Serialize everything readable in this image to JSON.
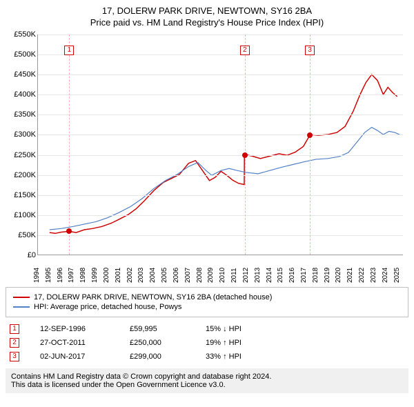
{
  "title": "17, DOLERW PARK DRIVE, NEWTOWN, SY16 2BA",
  "subtitle": "Price paid vs. HM Land Registry's House Price Index (HPI)",
  "chart": {
    "type": "line",
    "xlim": [
      1994,
      2025.5
    ],
    "ylim": [
      0,
      550
    ],
    "ytick_step": 50,
    "y_prefix": "£",
    "y_suffix": "K",
    "x_labels": [
      1994,
      1995,
      1996,
      1997,
      1998,
      1999,
      2000,
      2001,
      2002,
      2003,
      2004,
      2005,
      2006,
      2007,
      2008,
      2009,
      2010,
      2011,
      2012,
      2013,
      2014,
      2015,
      2016,
      2017,
      2018,
      2019,
      2020,
      2021,
      2022,
      2023,
      2024,
      2025
    ],
    "grid_color": "#e6e6e6",
    "axis_color": "#999999",
    "background_color": "#ffffff",
    "series": [
      {
        "name": "price",
        "color": "#d00000",
        "width": 1.5,
        "points": [
          [
            1995.0,
            55
          ],
          [
            1995.5,
            53
          ],
          [
            1996.0,
            56
          ],
          [
            1996.7,
            58
          ],
          [
            1997.3,
            55
          ],
          [
            1998.0,
            62
          ],
          [
            1998.7,
            65
          ],
          [
            1999.5,
            70
          ],
          [
            2000.3,
            78
          ],
          [
            2001.0,
            88
          ],
          [
            2001.8,
            100
          ],
          [
            2002.5,
            115
          ],
          [
            2003.2,
            135
          ],
          [
            2004.0,
            160
          ],
          [
            2004.8,
            180
          ],
          [
            2005.5,
            190
          ],
          [
            2006.2,
            200
          ],
          [
            2007.0,
            228
          ],
          [
            2007.6,
            235
          ],
          [
            2008.2,
            210
          ],
          [
            2008.8,
            185
          ],
          [
            2009.3,
            193
          ],
          [
            2009.8,
            208
          ],
          [
            2010.3,
            198
          ],
          [
            2010.8,
            186
          ],
          [
            2011.3,
            178
          ],
          [
            2011.8,
            175
          ],
          [
            2011.82,
            250
          ],
          [
            2012.5,
            246
          ],
          [
            2013.2,
            240
          ],
          [
            2014.0,
            246
          ],
          [
            2014.8,
            252
          ],
          [
            2015.5,
            248
          ],
          [
            2016.2,
            256
          ],
          [
            2016.9,
            270
          ],
          [
            2017.4,
            295
          ],
          [
            2017.42,
            300
          ],
          [
            2018.2,
            298
          ],
          [
            2019.0,
            300
          ],
          [
            2019.8,
            305
          ],
          [
            2020.5,
            320
          ],
          [
            2021.2,
            358
          ],
          [
            2021.8,
            400
          ],
          [
            2022.3,
            430
          ],
          [
            2022.8,
            450
          ],
          [
            2023.3,
            435
          ],
          [
            2023.8,
            400
          ],
          [
            2024.2,
            418
          ],
          [
            2024.6,
            405
          ],
          [
            2025.0,
            395
          ]
        ]
      },
      {
        "name": "hpi",
        "color": "#5080c8",
        "width": 1.2,
        "points": [
          [
            1995.0,
            62
          ],
          [
            1996.0,
            65
          ],
          [
            1997.0,
            70
          ],
          [
            1998.0,
            76
          ],
          [
            1999.0,
            82
          ],
          [
            2000.0,
            92
          ],
          [
            2001.0,
            105
          ],
          [
            2002.0,
            120
          ],
          [
            2003.0,
            140
          ],
          [
            2004.0,
            165
          ],
          [
            2005.0,
            185
          ],
          [
            2006.0,
            200
          ],
          [
            2007.0,
            220
          ],
          [
            2007.8,
            230
          ],
          [
            2008.5,
            210
          ],
          [
            2009.0,
            198
          ],
          [
            2009.8,
            210
          ],
          [
            2010.5,
            215
          ],
          [
            2011.2,
            210
          ],
          [
            2012.0,
            205
          ],
          [
            2013.0,
            202
          ],
          [
            2014.0,
            210
          ],
          [
            2015.0,
            218
          ],
          [
            2016.0,
            225
          ],
          [
            2017.0,
            232
          ],
          [
            2018.0,
            238
          ],
          [
            2019.0,
            240
          ],
          [
            2020.0,
            245
          ],
          [
            2020.8,
            255
          ],
          [
            2021.5,
            280
          ],
          [
            2022.2,
            305
          ],
          [
            2022.8,
            318
          ],
          [
            2023.3,
            310
          ],
          [
            2023.8,
            300
          ],
          [
            2024.3,
            308
          ],
          [
            2024.8,
            305
          ],
          [
            2025.2,
            300
          ]
        ]
      }
    ],
    "sale_markers": [
      {
        "n": "1",
        "x": 1996.7,
        "y": 60,
        "label_y": 510
      },
      {
        "n": "2",
        "x": 2011.82,
        "y": 250,
        "label_y": 510
      },
      {
        "n": "3",
        "x": 2017.42,
        "y": 299,
        "label_y": 510
      }
    ]
  },
  "legend": {
    "items": [
      {
        "color": "#d00000",
        "label": "17, DOLERW PARK DRIVE, NEWTOWN, SY16 2BA (detached house)"
      },
      {
        "color": "#5080c8",
        "label": "HPI: Average price, detached house, Powys"
      }
    ]
  },
  "sales": [
    {
      "n": "1",
      "date": "12-SEP-1996",
      "price": "£59,995",
      "change": "15% ↓ HPI"
    },
    {
      "n": "2",
      "date": "27-OCT-2011",
      "price": "£250,000",
      "change": "19% ↑ HPI"
    },
    {
      "n": "3",
      "date": "02-JUN-2017",
      "price": "£299,000",
      "change": "33% ↑ HPI"
    }
  ],
  "footer": {
    "line1": "Contains HM Land Registry data © Crown copyright and database right 2024.",
    "line2": "This data is licensed under the Open Government Licence v3.0."
  }
}
